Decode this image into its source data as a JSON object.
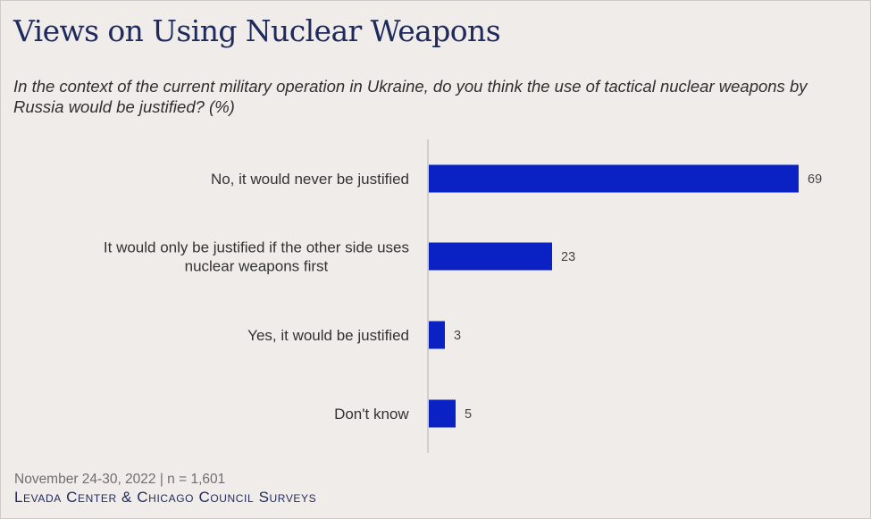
{
  "header": {
    "title": "Views on Using Nuclear Weapons",
    "subtitle": "In the context of the current military operation in Ukraine, do you think the use of tactical nuclear weapons by Russia would be justified? (%)"
  },
  "footer": {
    "note": "November 24-30, 2022 | n = 1,601",
    "source": "Levada Center & Chicago Council Surveys"
  },
  "colors": {
    "bar": "#0a22c4",
    "axis": "#c8c3c0",
    "title": "#1f2a5c"
  },
  "chart_data": {
    "type": "bar",
    "orientation": "horizontal",
    "categories": [
      [
        "No, it would never be justified"
      ],
      [
        "It would only be justified if the other side uses",
        "nuclear weapons first"
      ],
      [
        "Yes, it would be justified"
      ],
      [
        "Don't know"
      ]
    ],
    "values": [
      69,
      23,
      3,
      5
    ],
    "xlim": [
      0,
      69
    ],
    "grid": false,
    "legend": "none"
  }
}
